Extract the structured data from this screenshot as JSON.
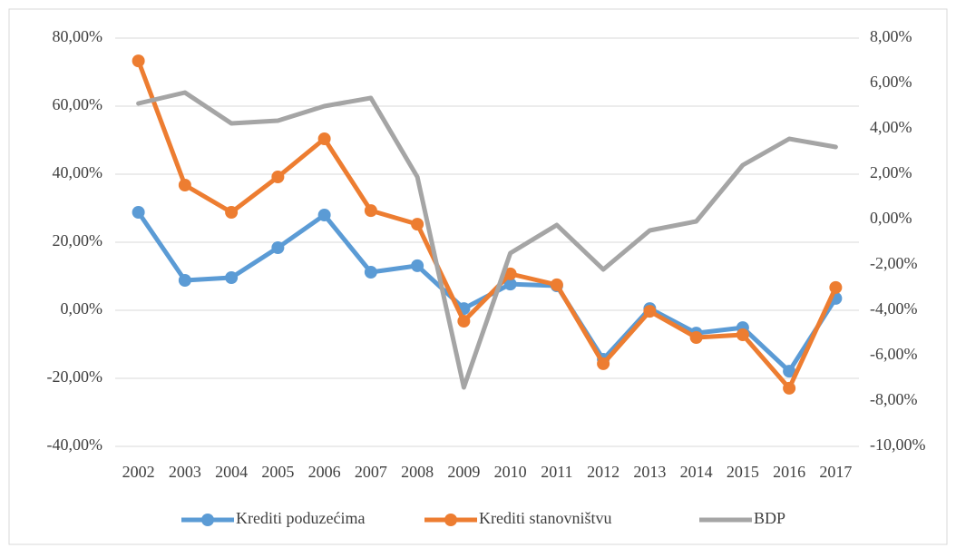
{
  "chart_data": {
    "type": "line",
    "categories": [
      "2002",
      "2003",
      "2004",
      "2005",
      "2006",
      "2007",
      "2008",
      "2009",
      "2010",
      "2011",
      "2012",
      "2013",
      "2014",
      "2015",
      "2016",
      "2017"
    ],
    "series": [
      {
        "name": "Krediti poduzećima",
        "color": "#5b9bd5",
        "marker": true,
        "values": [
          28.8,
          8.8,
          9.6,
          18.4,
          28.0,
          11.2,
          13.1,
          0.5,
          7.7,
          7.2,
          -14.4,
          0.5,
          -6.7,
          -5.1,
          -17.9,
          3.5
        ]
      },
      {
        "name": "Krediti stanovništvu",
        "color": "#ed7d31",
        "marker": true,
        "values": [
          73.3,
          36.8,
          28.8,
          39.2,
          50.4,
          29.3,
          25.3,
          -3.2,
          10.7,
          7.5,
          -15.7,
          -0.3,
          -8.0,
          -7.2,
          -22.9,
          6.7
        ]
      },
      {
        "name": "BDP",
        "color": "#a5a5a5",
        "marker": false,
        "axis": "y2",
        "values": [
          5.12,
          5.6,
          4.24,
          4.36,
          5.0,
          5.36,
          1.88,
          -7.4,
          -1.48,
          -0.24,
          -2.2,
          -0.48,
          -0.08,
          2.4,
          3.56,
          3.2
        ]
      }
    ],
    "ylim": [
      -40,
      80
    ],
    "yticks": [
      {
        "value": -40,
        "label": "-40,00%"
      },
      {
        "value": -20,
        "label": "-20,00%"
      },
      {
        "value": 0,
        "label": "0,00%"
      },
      {
        "value": 20,
        "label": "20,00%"
      },
      {
        "value": 40,
        "label": "40,00%"
      },
      {
        "value": 60,
        "label": "60,00%"
      },
      {
        "value": 80,
        "label": "80,00%"
      }
    ],
    "y2lim": [
      -10,
      8
    ],
    "y2ticks": [
      {
        "value": -10,
        "label": "-10,00%"
      },
      {
        "value": -8,
        "label": "-8,00%"
      },
      {
        "value": -6,
        "label": "-6,00%"
      },
      {
        "value": -4,
        "label": "-4,00%"
      },
      {
        "value": -2,
        "label": "-2,00%"
      },
      {
        "value": 0,
        "label": "0,00%"
      },
      {
        "value": 2,
        "label": "2,00%"
      },
      {
        "value": 4,
        "label": "4,00%"
      },
      {
        "value": 6,
        "label": "6,00%"
      },
      {
        "value": 8,
        "label": "8,00%"
      }
    ],
    "grid": true,
    "legend": "bottom"
  }
}
